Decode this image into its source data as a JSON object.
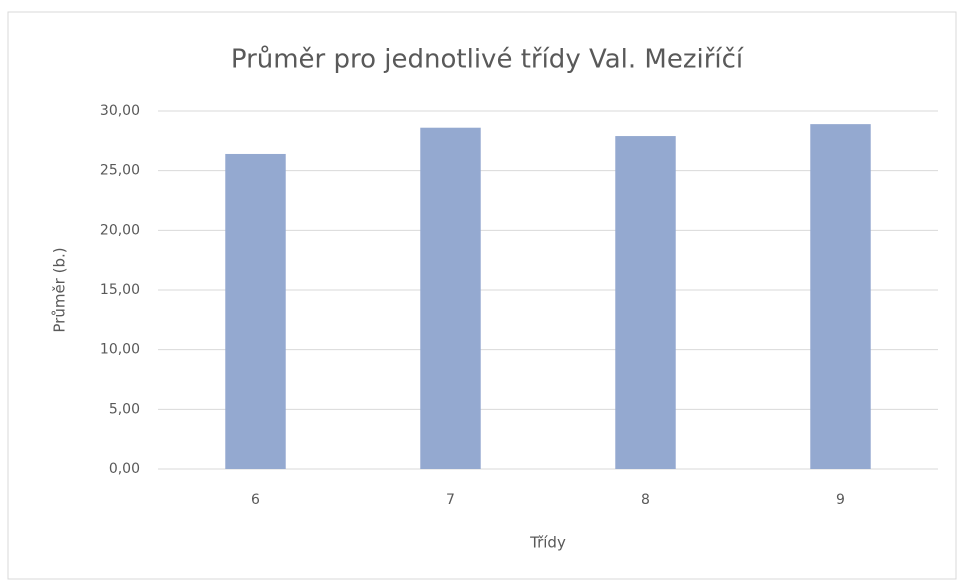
{
  "chart_data": {
    "type": "bar",
    "title": "Průměr pro jednotlivé třídy Val. Meziříčí",
    "x_label": "Třídy",
    "y_label": "Průměr (b.)",
    "categories": [
      "6",
      "7",
      "8",
      "9"
    ],
    "values": [
      26.4,
      28.6,
      27.9,
      28.9
    ],
    "color": "#94a9d0",
    "ylim": [
      0,
      30
    ],
    "yticks": [
      {
        "value": 0,
        "label": "0,00"
      },
      {
        "value": 5,
        "label": "5,00"
      },
      {
        "value": 10,
        "label": "10,00"
      },
      {
        "value": 15,
        "label": "15,00"
      },
      {
        "value": 20,
        "label": "20,00"
      },
      {
        "value": 25,
        "label": "25,00"
      },
      {
        "value": 30,
        "label": "30,00"
      }
    ],
    "grid": true
  }
}
